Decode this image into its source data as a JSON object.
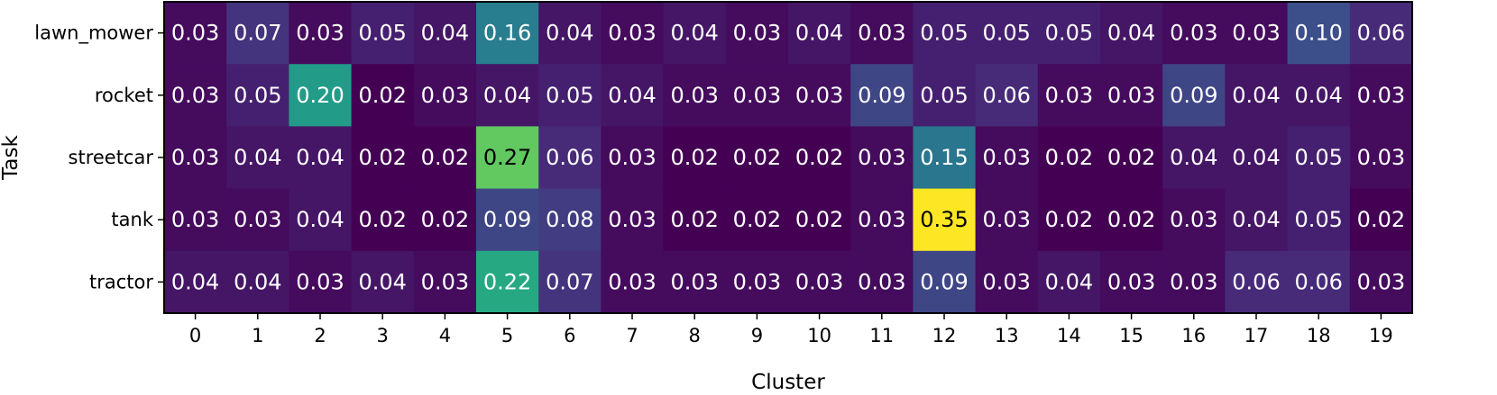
{
  "chart_data": {
    "type": "heatmap",
    "xlabel": "Cluster",
    "ylabel": "Task",
    "x_categories": [
      "0",
      "1",
      "2",
      "3",
      "4",
      "5",
      "6",
      "7",
      "8",
      "9",
      "10",
      "11",
      "12",
      "13",
      "14",
      "15",
      "16",
      "17",
      "18",
      "19"
    ],
    "y_categories": [
      "lawn_mower",
      "rocket",
      "streetcar",
      "tank",
      "tractor"
    ],
    "values": [
      [
        0.03,
        0.07,
        0.03,
        0.05,
        0.04,
        0.16,
        0.04,
        0.03,
        0.04,
        0.03,
        0.04,
        0.03,
        0.05,
        0.05,
        0.05,
        0.04,
        0.03,
        0.03,
        0.1,
        0.06
      ],
      [
        0.03,
        0.05,
        0.2,
        0.02,
        0.03,
        0.04,
        0.05,
        0.04,
        0.03,
        0.03,
        0.03,
        0.09,
        0.05,
        0.06,
        0.03,
        0.03,
        0.09,
        0.04,
        0.04,
        0.03
      ],
      [
        0.03,
        0.04,
        0.04,
        0.02,
        0.02,
        0.27,
        0.06,
        0.03,
        0.02,
        0.02,
        0.02,
        0.03,
        0.15,
        0.03,
        0.02,
        0.02,
        0.04,
        0.04,
        0.05,
        0.03
      ],
      [
        0.03,
        0.03,
        0.04,
        0.02,
        0.02,
        0.09,
        0.08,
        0.03,
        0.02,
        0.02,
        0.02,
        0.03,
        0.35,
        0.03,
        0.02,
        0.02,
        0.03,
        0.04,
        0.05,
        0.02
      ],
      [
        0.04,
        0.04,
        0.03,
        0.04,
        0.03,
        0.22,
        0.07,
        0.03,
        0.03,
        0.03,
        0.03,
        0.03,
        0.09,
        0.03,
        0.04,
        0.03,
        0.03,
        0.06,
        0.06,
        0.03
      ]
    ],
    "value_format": "2 decimals",
    "colormap": "viridis",
    "color_range": [
      0.02,
      0.35
    ],
    "grid": false,
    "legend": "none"
  }
}
